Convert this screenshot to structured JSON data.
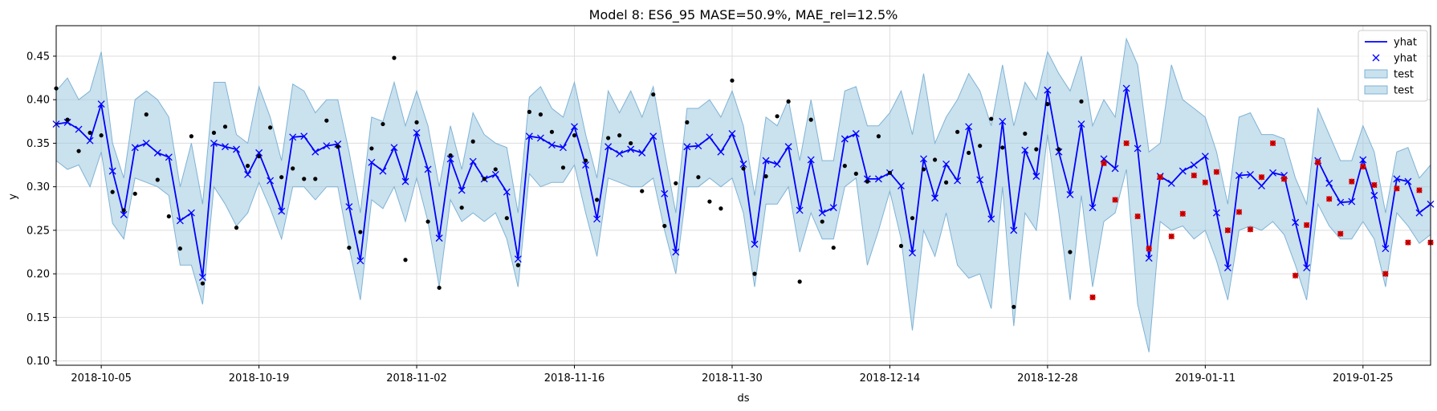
{
  "chart_data": {
    "type": "line",
    "title": "Model 8: ES6_95 MASE=50.9%, MAE_rel=12.5%",
    "xlabel": "ds",
    "ylabel": "y",
    "x_start": "2018-10-01",
    "x_end": "2019-01-31",
    "ylim": [
      0.095,
      0.485
    ],
    "grid": true,
    "legend_position": "top-right",
    "x_ticks": [
      "2018-10-05",
      "2018-10-19",
      "2018-11-02",
      "2018-11-16",
      "2018-11-30",
      "2018-12-14",
      "2018-12-28",
      "2019-01-11",
      "2019-01-25"
    ],
    "y_ticks": [
      0.1,
      0.15,
      0.2,
      0.25,
      0.3,
      0.35,
      0.4,
      0.45
    ],
    "x": [
      "2018-10-01",
      "2018-10-02",
      "2018-10-03",
      "2018-10-04",
      "2018-10-05",
      "2018-10-06",
      "2018-10-07",
      "2018-10-08",
      "2018-10-09",
      "2018-10-10",
      "2018-10-11",
      "2018-10-12",
      "2018-10-13",
      "2018-10-14",
      "2018-10-15",
      "2018-10-16",
      "2018-10-17",
      "2018-10-18",
      "2018-10-19",
      "2018-10-20",
      "2018-10-21",
      "2018-10-22",
      "2018-10-23",
      "2018-10-24",
      "2018-10-25",
      "2018-10-26",
      "2018-10-27",
      "2018-10-28",
      "2018-10-29",
      "2018-10-30",
      "2018-10-31",
      "2018-11-01",
      "2018-11-02",
      "2018-11-03",
      "2018-11-04",
      "2018-11-05",
      "2018-11-06",
      "2018-11-07",
      "2018-11-08",
      "2018-11-09",
      "2018-11-10",
      "2018-11-11",
      "2018-11-12",
      "2018-11-13",
      "2018-11-14",
      "2018-11-15",
      "2018-11-16",
      "2018-11-17",
      "2018-11-18",
      "2018-11-19",
      "2018-11-20",
      "2018-11-21",
      "2018-11-22",
      "2018-11-23",
      "2018-11-24",
      "2018-11-25",
      "2018-11-26",
      "2018-11-27",
      "2018-11-28",
      "2018-11-29",
      "2018-11-30",
      "2018-12-01",
      "2018-12-02",
      "2018-12-03",
      "2018-12-04",
      "2018-12-05",
      "2018-12-06",
      "2018-12-07",
      "2018-12-08",
      "2018-12-09",
      "2018-12-10",
      "2018-12-11",
      "2018-12-12",
      "2018-12-13",
      "2018-12-14",
      "2018-12-15",
      "2018-12-16",
      "2018-12-17",
      "2018-12-18",
      "2018-12-19",
      "2018-12-20",
      "2018-12-21",
      "2018-12-22",
      "2018-12-23",
      "2018-12-24",
      "2018-12-25",
      "2018-12-26",
      "2018-12-27",
      "2018-12-28",
      "2018-12-29",
      "2018-12-30",
      "2018-12-31",
      "2019-01-01",
      "2019-01-02",
      "2019-01-03",
      "2019-01-04",
      "2019-01-05",
      "2019-01-06",
      "2019-01-07",
      "2019-01-08",
      "2019-01-09",
      "2019-01-10",
      "2019-01-11",
      "2019-01-12",
      "2019-01-13",
      "2019-01-14",
      "2019-01-15",
      "2019-01-16",
      "2019-01-17",
      "2019-01-18",
      "2019-01-19",
      "2019-01-20",
      "2019-01-21",
      "2019-01-22",
      "2019-01-23",
      "2019-01-24",
      "2019-01-25",
      "2019-01-26",
      "2019-01-27",
      "2019-01-28",
      "2019-01-29",
      "2019-01-30",
      "2019-01-31"
    ],
    "yhat": [
      0.372,
      0.374,
      0.366,
      0.353,
      0.395,
      0.318,
      0.268,
      0.345,
      0.35,
      0.339,
      0.334,
      0.261,
      0.27,
      0.196,
      0.35,
      0.346,
      0.343,
      0.314,
      0.339,
      0.307,
      0.272,
      0.357,
      0.358,
      0.34,
      0.347,
      0.349,
      0.277,
      0.215,
      0.328,
      0.318,
      0.345,
      0.306,
      0.362,
      0.32,
      0.241,
      0.332,
      0.296,
      0.329,
      0.309,
      0.314,
      0.294,
      0.217,
      0.358,
      0.356,
      0.348,
      0.345,
      0.369,
      0.325,
      0.263,
      0.346,
      0.338,
      0.343,
      0.339,
      0.358,
      0.292,
      0.225,
      0.346,
      0.347,
      0.357,
      0.34,
      0.361,
      0.326,
      0.234,
      0.33,
      0.326,
      0.346,
      0.273,
      0.331,
      0.27,
      0.276,
      0.355,
      0.361,
      0.309,
      0.309,
      0.316,
      0.301,
      0.224,
      0.332,
      0.287,
      0.326,
      0.307,
      0.369,
      0.308,
      0.263,
      0.375,
      0.25,
      0.342,
      0.312,
      0.411,
      0.34,
      0.291,
      0.372,
      0.276,
      0.332,
      0.321,
      0.413,
      0.344,
      0.218,
      0.312,
      0.304,
      0.318,
      0.325,
      0.335,
      0.27,
      0.207,
      0.313,
      0.314,
      0.301,
      0.316,
      0.313,
      0.259,
      0.207,
      0.33,
      0.304,
      0.282,
      0.283,
      0.331,
      0.29,
      0.229,
      0.309,
      0.306,
      0.27,
      0.28
    ],
    "upper": [
      0.41,
      0.425,
      0.4,
      0.41,
      0.455,
      0.35,
      0.31,
      0.4,
      0.41,
      0.4,
      0.38,
      0.3,
      0.35,
      0.28,
      0.42,
      0.42,
      0.36,
      0.35,
      0.415,
      0.38,
      0.33,
      0.418,
      0.41,
      0.385,
      0.4,
      0.4,
      0.34,
      0.27,
      0.38,
      0.375,
      0.42,
      0.37,
      0.41,
      0.37,
      0.3,
      0.37,
      0.32,
      0.385,
      0.36,
      0.35,
      0.345,
      0.27,
      0.403,
      0.415,
      0.39,
      0.38,
      0.42,
      0.36,
      0.31,
      0.41,
      0.385,
      0.41,
      0.38,
      0.415,
      0.34,
      0.27,
      0.39,
      0.39,
      0.4,
      0.38,
      0.41,
      0.37,
      0.29,
      0.38,
      0.37,
      0.4,
      0.33,
      0.4,
      0.33,
      0.33,
      0.41,
      0.415,
      0.37,
      0.37,
      0.385,
      0.41,
      0.36,
      0.43,
      0.35,
      0.38,
      0.4,
      0.43,
      0.41,
      0.37,
      0.44,
      0.37,
      0.42,
      0.4,
      0.455,
      0.43,
      0.41,
      0.45,
      0.37,
      0.4,
      0.38,
      0.47,
      0.44,
      0.34,
      0.35,
      0.44,
      0.4,
      0.39,
      0.38,
      0.34,
      0.28,
      0.38,
      0.385,
      0.36,
      0.36,
      0.355,
      0.31,
      0.28,
      0.39,
      0.36,
      0.33,
      0.33,
      0.37,
      0.34,
      0.27,
      0.34,
      0.345,
      0.31,
      0.325
    ],
    "lower": [
      0.33,
      0.32,
      0.325,
      0.3,
      0.34,
      0.258,
      0.24,
      0.31,
      0.305,
      0.3,
      0.29,
      0.21,
      0.21,
      0.165,
      0.3,
      0.28,
      0.255,
      0.27,
      0.305,
      0.275,
      0.24,
      0.3,
      0.3,
      0.285,
      0.3,
      0.3,
      0.23,
      0.17,
      0.285,
      0.275,
      0.3,
      0.26,
      0.31,
      0.26,
      0.185,
      0.285,
      0.26,
      0.27,
      0.26,
      0.27,
      0.24,
      0.185,
      0.315,
      0.3,
      0.305,
      0.305,
      0.325,
      0.27,
      0.22,
      0.31,
      0.305,
      0.3,
      0.3,
      0.31,
      0.25,
      0.2,
      0.3,
      0.3,
      0.31,
      0.3,
      0.31,
      0.27,
      0.185,
      0.28,
      0.28,
      0.3,
      0.225,
      0.27,
      0.24,
      0.24,
      0.3,
      0.31,
      0.21,
      0.25,
      0.295,
      0.24,
      0.135,
      0.25,
      0.22,
      0.27,
      0.21,
      0.195,
      0.2,
      0.16,
      0.3,
      0.14,
      0.27,
      0.25,
      0.36,
      0.27,
      0.17,
      0.29,
      0.185,
      0.26,
      0.27,
      0.32,
      0.165,
      0.11,
      0.26,
      0.25,
      0.255,
      0.24,
      0.25,
      0.215,
      0.17,
      0.25,
      0.255,
      0.25,
      0.26,
      0.245,
      0.21,
      0.17,
      0.28,
      0.255,
      0.24,
      0.24,
      0.26,
      0.24,
      0.185,
      0.27,
      0.255,
      0.235,
      0.245
    ],
    "train_points": [
      [
        0,
        0.413
      ],
      [
        1,
        0.377
      ],
      [
        2,
        0.341
      ],
      [
        3,
        0.362
      ],
      [
        4,
        0.359
      ],
      [
        5,
        0.294
      ],
      [
        6,
        0.273
      ],
      [
        7,
        0.292
      ],
      [
        8,
        0.383
      ],
      [
        9,
        0.308
      ],
      [
        10,
        0.266
      ],
      [
        11,
        0.229
      ],
      [
        12,
        0.358
      ],
      [
        13,
        0.189
      ],
      [
        14,
        0.362
      ],
      [
        15,
        0.369
      ],
      [
        16,
        0.253
      ],
      [
        17,
        0.324
      ],
      [
        18,
        0.335
      ],
      [
        19,
        0.368
      ],
      [
        20,
        0.311
      ],
      [
        21,
        0.321
      ],
      [
        22,
        0.309
      ],
      [
        23,
        0.309
      ],
      [
        24,
        0.376
      ],
      [
        25,
        0.346
      ],
      [
        26,
        0.23
      ],
      [
        27,
        0.248
      ],
      [
        28,
        0.344
      ],
      [
        29,
        0.372
      ],
      [
        30,
        0.448
      ],
      [
        31,
        0.216
      ],
      [
        32,
        0.374
      ],
      [
        33,
        0.26
      ],
      [
        34,
        0.184
      ],
      [
        35,
        0.336
      ],
      [
        36,
        0.276
      ],
      [
        37,
        0.352
      ],
      [
        38,
        0.309
      ],
      [
        39,
        0.32
      ],
      [
        40,
        0.264
      ],
      [
        41,
        0.21
      ],
      [
        42,
        0.386
      ],
      [
        43,
        0.383
      ],
      [
        44,
        0.363
      ],
      [
        45,
        0.322
      ],
      [
        46,
        0.359
      ],
      [
        47,
        0.33
      ],
      [
        48,
        0.285
      ],
      [
        49,
        0.356
      ],
      [
        50,
        0.359
      ],
      [
        51,
        0.35
      ],
      [
        52,
        0.295
      ],
      [
        53,
        0.406
      ],
      [
        54,
        0.255
      ],
      [
        55,
        0.304
      ],
      [
        56,
        0.374
      ],
      [
        57,
        0.311
      ],
      [
        58,
        0.283
      ],
      [
        59,
        0.275
      ],
      [
        60,
        0.422
      ],
      [
        61,
        0.321
      ],
      [
        62,
        0.2
      ],
      [
        63,
        0.312
      ],
      [
        64,
        0.381
      ],
      [
        65,
        0.398
      ],
      [
        66,
        0.191
      ],
      [
        67,
        0.377
      ],
      [
        68,
        0.26
      ],
      [
        69,
        0.23
      ],
      [
        70,
        0.324
      ],
      [
        71,
        0.315
      ],
      [
        72,
        0.306
      ],
      [
        73,
        0.358
      ],
      [
        74,
        0.316
      ],
      [
        75,
        0.232
      ],
      [
        76,
        0.264
      ],
      [
        77,
        0.32
      ],
      [
        78,
        0.331
      ],
      [
        79,
        0.305
      ],
      [
        80,
        0.363
      ],
      [
        81,
        0.339
      ],
      [
        82,
        0.347
      ],
      [
        83,
        0.378
      ],
      [
        84,
        0.345
      ],
      [
        85,
        0.162
      ],
      [
        86,
        0.361
      ],
      [
        87,
        0.343
      ],
      [
        88,
        0.395
      ],
      [
        89,
        0.343
      ],
      [
        90,
        0.225
      ],
      [
        91,
        0.398
      ]
    ],
    "test_points": [
      [
        92,
        0.173
      ],
      [
        93,
        0.327
      ],
      [
        94,
        0.285
      ],
      [
        95,
        0.35
      ],
      [
        96,
        0.266
      ],
      [
        97,
        0.229
      ],
      [
        98,
        0.311
      ],
      [
        99,
        0.243
      ],
      [
        100,
        0.269
      ],
      [
        101,
        0.313
      ],
      [
        102,
        0.305
      ],
      [
        103,
        0.317
      ],
      [
        104,
        0.25
      ],
      [
        105,
        0.271
      ],
      [
        106,
        0.251
      ],
      [
        107,
        0.311
      ],
      [
        108,
        0.35
      ],
      [
        109,
        0.309
      ],
      [
        110,
        0.198
      ],
      [
        111,
        0.256
      ],
      [
        112,
        0.328
      ],
      [
        113,
        0.286
      ],
      [
        114,
        0.246
      ],
      [
        115,
        0.306
      ],
      [
        116,
        0.323
      ],
      [
        117,
        0.302
      ],
      [
        118,
        0.2
      ],
      [
        119,
        0.298
      ],
      [
        120,
        0.236
      ],
      [
        121,
        0.296
      ],
      [
        122,
        0.236
      ]
    ],
    "legend": [
      "yhat",
      "yhat",
      "test",
      "test"
    ],
    "colors": {
      "line": "#0000ff",
      "band": "#9ec8e0",
      "band_edge": "#7fb3d5",
      "train": "#000000",
      "test_fill": "#ff0000",
      "test_edge": "#8b0000",
      "grid": "#dddddd"
    }
  }
}
